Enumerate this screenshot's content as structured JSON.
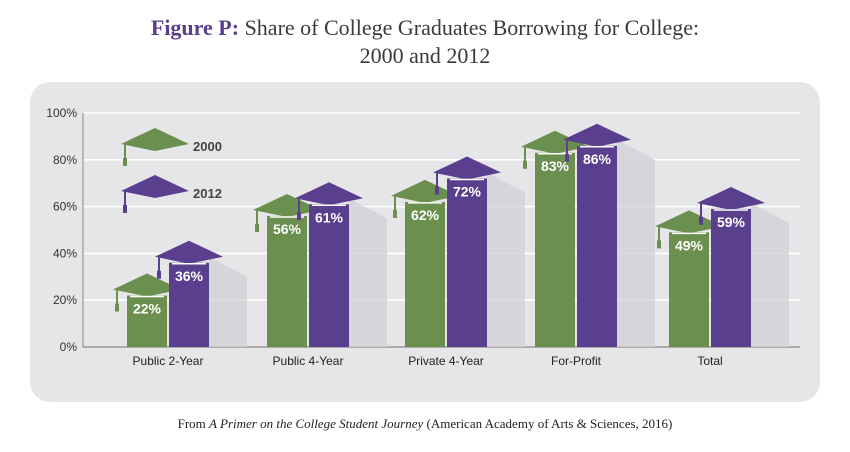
{
  "title": {
    "lead": "Figure P:",
    "line1": "Share of College Graduates Borrowing for College:",
    "line2": "2000 and 2012"
  },
  "source": {
    "prefix": "From",
    "italic": "A Primer on the College Student Journey",
    "suffix": "(American Academy of Arts & Sciences, 2016)"
  },
  "colors": {
    "series_2000": "#6a8f4e",
    "series_2012": "#5a3f8e",
    "panel": "#e6e6e8",
    "title_accent": "#5a3f8e"
  },
  "chart_data": {
    "type": "bar",
    "title": "Share of College Graduates Borrowing for College: 2000 and 2012",
    "xlabel": "",
    "ylabel": "",
    "ylim": [
      0,
      100
    ],
    "yticks": [
      "0%",
      "20%",
      "40%",
      "60%",
      "80%",
      "100%"
    ],
    "grid": true,
    "legend": "top-left",
    "categories": [
      "Public 2-Year",
      "Public 4-Year",
      "Private 4-Year",
      "For-Profit",
      "Total"
    ],
    "series": [
      {
        "name": "2000",
        "values": [
          22,
          56,
          62,
          83,
          49
        ],
        "labels": [
          "22%",
          "56%",
          "62%",
          "83%",
          "49%"
        ],
        "color": "#6a8f4e",
        "icon": "graduation-cap-icon"
      },
      {
        "name": "2012",
        "values": [
          36,
          61,
          72,
          86,
          59
        ],
        "labels": [
          "36%",
          "61%",
          "72%",
          "86%",
          "59%"
        ],
        "color": "#5a3f8e",
        "icon": "graduation-cap-icon"
      }
    ]
  }
}
